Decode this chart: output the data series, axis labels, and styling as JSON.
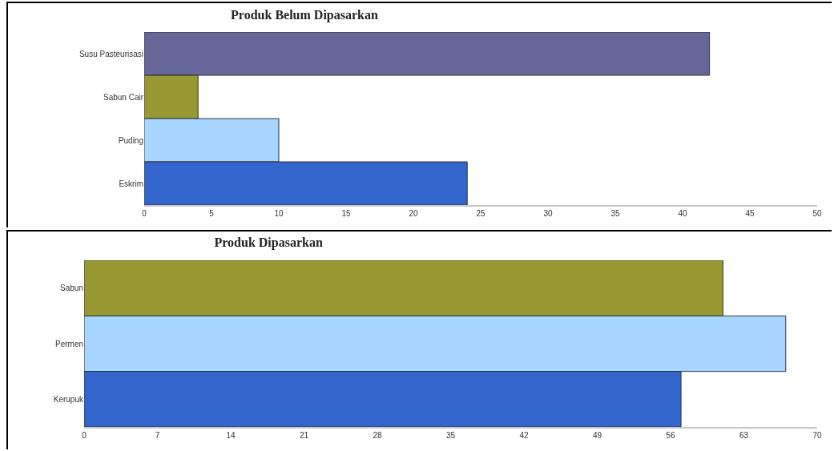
{
  "chart_data": [
    {
      "type": "bar",
      "orientation": "horizontal",
      "title": "Produk Belum Dipasarkan",
      "categories": [
        "Susu Pasteurisasi",
        "Sabun Cair",
        "Puding",
        "Eskrim"
      ],
      "values": [
        42,
        4,
        10,
        24
      ],
      "colors": [
        "#666699",
        "#999933",
        "#a6d6ff",
        "#3366cc"
      ],
      "xlim": [
        0,
        50
      ],
      "xticks": [
        0,
        5,
        10,
        15,
        20,
        25,
        30,
        35,
        40,
        45,
        50
      ]
    },
    {
      "type": "bar",
      "orientation": "horizontal",
      "title": "Produk Dipasarkan",
      "categories": [
        "Sabun",
        "Permen",
        "Kerupuk"
      ],
      "values": [
        61,
        67,
        57
      ],
      "colors": [
        "#999933",
        "#a6d6ff",
        "#3366cc"
      ],
      "xlim": [
        0,
        70
      ],
      "xticks": [
        0,
        7,
        14,
        21,
        28,
        35,
        42,
        49,
        56,
        63,
        70
      ]
    }
  ]
}
